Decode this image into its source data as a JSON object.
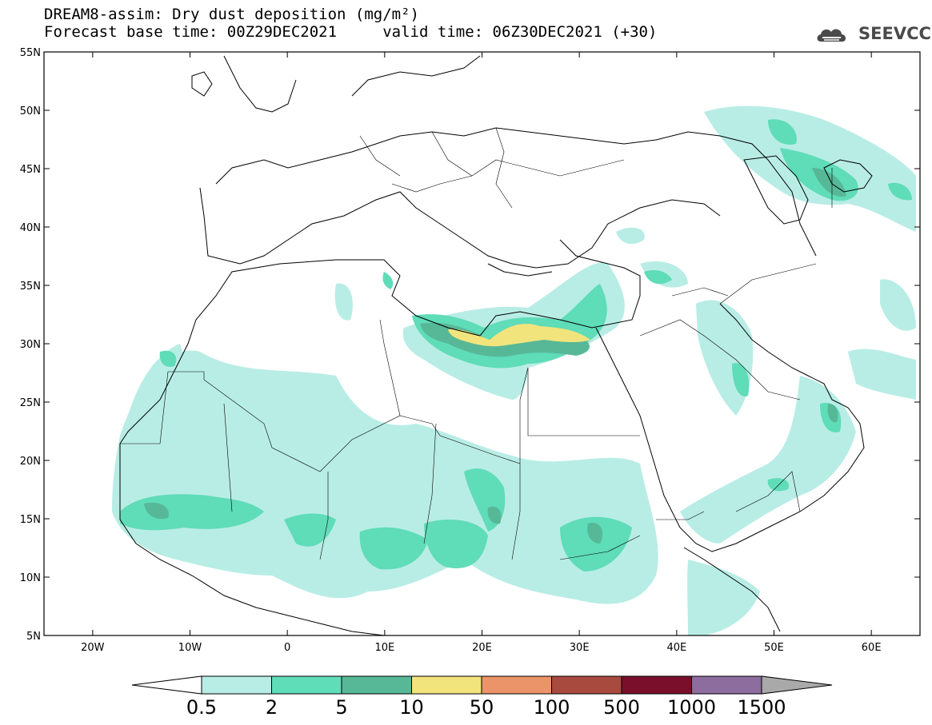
{
  "header": {
    "title_line1": "DREAM8-assim: Dry dust deposition (mg/m²)",
    "title_line2": "Forecast base time: 00Z29DEC2021     valid time: 06Z30DEC2021 (+30)",
    "logo_text": "SEEVCCC",
    "logo_icon": "cloud-logo-icon"
  },
  "map": {
    "lon_range": [
      -25,
      65
    ],
    "lat_range": [
      5,
      55
    ],
    "lat_ticks": [
      {
        "value": 55,
        "label": "55N"
      },
      {
        "value": 50,
        "label": "50N"
      },
      {
        "value": 45,
        "label": "45N"
      },
      {
        "value": 40,
        "label": "40N"
      },
      {
        "value": 35,
        "label": "35N"
      },
      {
        "value": 30,
        "label": "30N"
      },
      {
        "value": 25,
        "label": "25N"
      },
      {
        "value": 20,
        "label": "20N"
      },
      {
        "value": 15,
        "label": "15N"
      },
      {
        "value": 10,
        "label": "10N"
      },
      {
        "value": 5,
        "label": "5N"
      }
    ],
    "lon_ticks": [
      {
        "value": -20,
        "label": "20W"
      },
      {
        "value": -10,
        "label": "10W"
      },
      {
        "value": 0,
        "label": "0"
      },
      {
        "value": 10,
        "label": "10E"
      },
      {
        "value": 20,
        "label": "20E"
      },
      {
        "value": 30,
        "label": "30E"
      },
      {
        "value": 40,
        "label": "40E"
      },
      {
        "value": 50,
        "label": "50E"
      },
      {
        "value": 60,
        "label": "60E"
      }
    ]
  },
  "colorbar": {
    "levels": [
      "0.5",
      "2",
      "5",
      "10",
      "50",
      "100",
      "500",
      "1000",
      "1500"
    ],
    "colors": [
      "#b8ede5",
      "#5fdcb8",
      "#57b897",
      "#f1e47c",
      "#eb946a",
      "#a94a3f",
      "#7a0f2b",
      "#8c6d9e"
    ],
    "under_color": "#ffffff",
    "over_color": "#a9a9a9"
  },
  "dust_colors": {
    "level1": "#b8ede5",
    "level2": "#5fdcb8",
    "level3": "#57b897",
    "level4": "#f1e47c"
  }
}
